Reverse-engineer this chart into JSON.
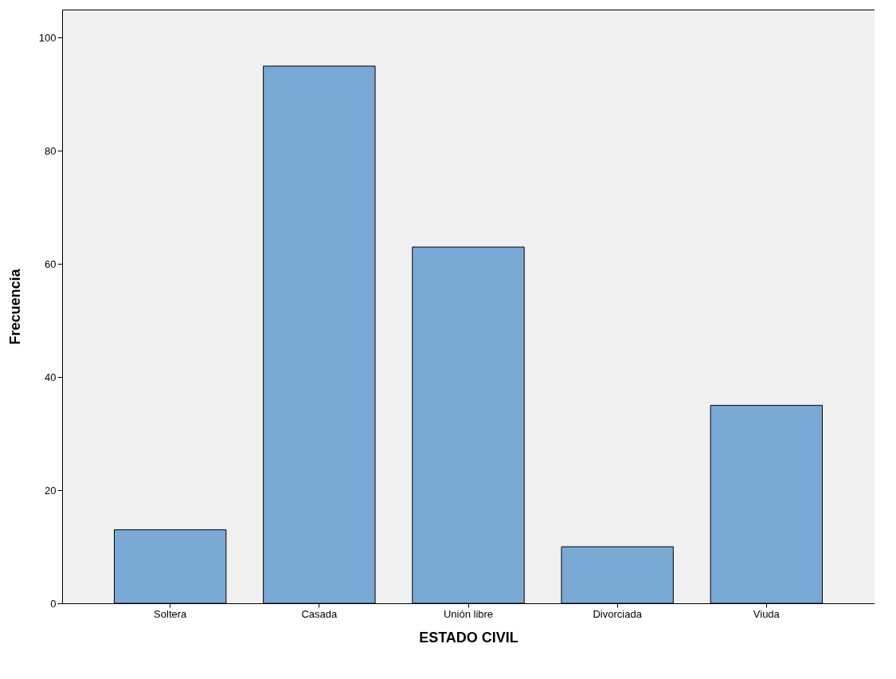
{
  "chart_data": {
    "type": "bar",
    "xlabel": "ESTADO CIVIL",
    "ylabel": "Frecuencia",
    "categories": [
      "Soltera",
      "Casada",
      "Unión libre",
      "Divorciada",
      "Viuda"
    ],
    "values": [
      13,
      95,
      63,
      10,
      35
    ],
    "color": "#7ba9d5",
    "ylim": [
      0,
      105
    ],
    "yticks": [
      0,
      20,
      40,
      60,
      80,
      100
    ]
  }
}
